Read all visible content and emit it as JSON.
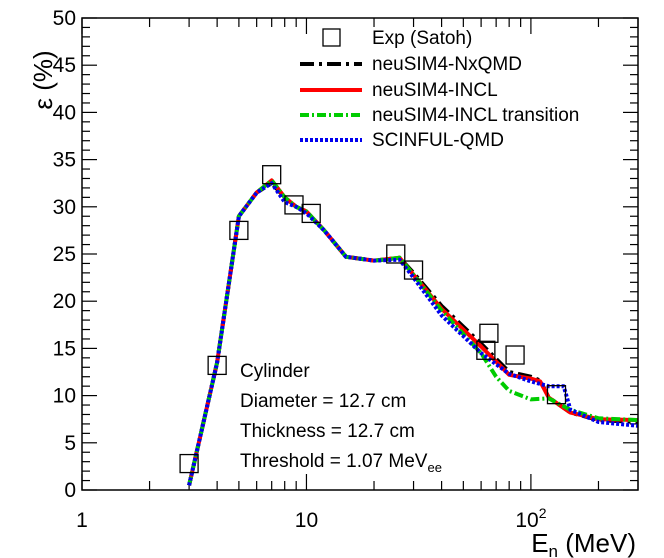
{
  "chart_data": {
    "type": "line",
    "title": "",
    "xlabel": "E",
    "xlabel_sub": "n",
    "xlabel_unit": " (MeV)",
    "ylabel": "ε (%)",
    "xscale": "log",
    "xlim": [
      1,
      300
    ],
    "ylim": [
      0,
      50
    ],
    "grid": false,
    "legend_position": "top-right",
    "x_tick_labels": [
      {
        "value": 1,
        "label": "1"
      },
      {
        "value": 10,
        "label": "10"
      },
      {
        "value": 100,
        "label": "10",
        "sup": "2"
      }
    ],
    "y_tick_labels": [
      "0",
      "5",
      "10",
      "15",
      "20",
      "25",
      "30",
      "35",
      "40",
      "45",
      "50"
    ],
    "series": [
      {
        "name": "Exp (Satoh)",
        "kind": "markers",
        "marker": "open-square",
        "color": "#000000",
        "points": [
          [
            3.0,
            2.8
          ],
          [
            4.0,
            13.2
          ],
          [
            5.0,
            27.5
          ],
          [
            7.0,
            33.4
          ],
          [
            8.8,
            30.2
          ],
          [
            10.5,
            29.3
          ],
          [
            25.0,
            25.0
          ],
          [
            30.0,
            23.3
          ],
          [
            63.0,
            14.8
          ],
          [
            65.0,
            16.6
          ],
          [
            85.0,
            14.3
          ],
          [
            130.0,
            10.1
          ]
        ]
      },
      {
        "name": "neuSIM4-NxQMD",
        "kind": "line",
        "color": "#000000",
        "dash": "14,5,3,5",
        "points": [
          [
            3.0,
            0.5
          ],
          [
            4.0,
            13.5
          ],
          [
            5.0,
            29.0
          ],
          [
            6.0,
            31.5
          ],
          [
            7.0,
            32.5
          ],
          [
            8.0,
            31.0
          ],
          [
            9.0,
            30.0
          ],
          [
            10.0,
            29.5
          ],
          [
            12.0,
            27.5
          ],
          [
            15.0,
            24.7
          ],
          [
            20.0,
            24.3
          ],
          [
            26.0,
            24.6
          ],
          [
            30.0,
            23.0
          ],
          [
            40.0,
            19.5
          ],
          [
            60.0,
            15.5
          ],
          [
            80.0,
            12.5
          ],
          [
            100.0,
            12.0
          ],
          [
            110.0,
            11.6
          ],
          [
            120.0,
            9.8
          ],
          [
            150.0,
            8.2
          ],
          [
            200.0,
            7.4
          ],
          [
            300.0,
            7.2
          ]
        ]
      },
      {
        "name": "neuSIM4-INCL",
        "kind": "line",
        "color": "#ff0000",
        "dash": "",
        "points": [
          [
            3.0,
            0.5
          ],
          [
            4.0,
            13.5
          ],
          [
            5.0,
            29.0
          ],
          [
            6.0,
            31.5
          ],
          [
            7.0,
            32.8
          ],
          [
            8.0,
            31.0
          ],
          [
            9.0,
            30.0
          ],
          [
            10.0,
            29.5
          ],
          [
            12.0,
            27.5
          ],
          [
            15.0,
            24.7
          ],
          [
            20.0,
            24.3
          ],
          [
            26.0,
            24.6
          ],
          [
            30.0,
            22.8
          ],
          [
            40.0,
            19.2
          ],
          [
            60.0,
            15.2
          ],
          [
            80.0,
            12.2
          ],
          [
            100.0,
            11.8
          ],
          [
            110.0,
            11.5
          ],
          [
            120.0,
            9.8
          ],
          [
            150.0,
            8.2
          ],
          [
            200.0,
            7.5
          ],
          [
            300.0,
            7.4
          ]
        ]
      },
      {
        "name": "neuSIM4-INCL transition",
        "kind": "line",
        "color": "#00cc00",
        "dash": "9,3,2,3",
        "points": [
          [
            3.0,
            0.5
          ],
          [
            4.0,
            13.5
          ],
          [
            5.0,
            29.0
          ],
          [
            6.0,
            31.5
          ],
          [
            7.0,
            32.8
          ],
          [
            8.0,
            31.0
          ],
          [
            9.0,
            30.0
          ],
          [
            10.0,
            29.5
          ],
          [
            12.0,
            27.5
          ],
          [
            15.0,
            24.7
          ],
          [
            20.0,
            24.3
          ],
          [
            26.0,
            24.6
          ],
          [
            30.0,
            22.8
          ],
          [
            40.0,
            19.0
          ],
          [
            60.0,
            14.5
          ],
          [
            70.0,
            12.0
          ],
          [
            80.0,
            10.5
          ],
          [
            100.0,
            9.6
          ],
          [
            120.0,
            9.7
          ],
          [
            150.0,
            8.5
          ],
          [
            200.0,
            7.6
          ],
          [
            300.0,
            7.4
          ]
        ]
      },
      {
        "name": "SCINFUL-QMD",
        "kind": "line",
        "color": "#0000ee",
        "dash": "3,2",
        "points": [
          [
            3.0,
            0.5
          ],
          [
            4.0,
            13.5
          ],
          [
            5.0,
            29.0
          ],
          [
            6.0,
            31.5
          ],
          [
            7.0,
            32.5
          ],
          [
            8.0,
            30.5
          ],
          [
            9.0,
            30.0
          ],
          [
            10.0,
            29.3
          ],
          [
            12.0,
            27.5
          ],
          [
            15.0,
            24.7
          ],
          [
            20.0,
            24.3
          ],
          [
            26.0,
            24.4
          ],
          [
            30.0,
            22.5
          ],
          [
            40.0,
            18.5
          ],
          [
            60.0,
            14.5
          ],
          [
            80.0,
            12.3
          ],
          [
            100.0,
            11.5
          ],
          [
            120.0,
            11.0
          ],
          [
            140.0,
            11.0
          ],
          [
            150.0,
            8.5
          ],
          [
            200.0,
            7.2
          ],
          [
            300.0,
            6.8
          ]
        ]
      }
    ],
    "annotations": [
      {
        "text": "Cylinder"
      },
      {
        "text": "Diameter = 12.7 cm"
      },
      {
        "text": "Thickness = 12.7 cm"
      },
      {
        "text": "Threshold = 1.07 MeV",
        "sub": "ee"
      }
    ]
  }
}
